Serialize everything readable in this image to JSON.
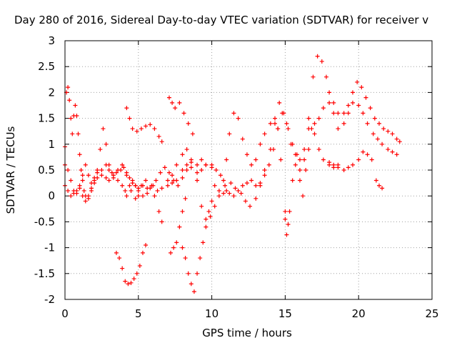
{
  "chart_data": {
    "type": "scatter",
    "title": "Day 280 of 2016, Sidereal Day-to-day VTEC variation (SDTVAR) for receiver v",
    "xlabel": "GPS time / hours",
    "ylabel": "SDTVAR / TECUs",
    "xlim": [
      0,
      25
    ],
    "ylim": [
      -2,
      3
    ],
    "xticks": [
      "0",
      "5",
      "10",
      "15",
      "20",
      "25"
    ],
    "yticks": [
      "-2",
      "-1.5",
      "-1",
      "-0.5",
      "0",
      "0.5",
      "1",
      "1.5",
      "2",
      "2.5",
      "3"
    ],
    "grid": true,
    "marker": "+",
    "color": "#ff0000",
    "series": [
      {
        "points": [
          [
            0.0,
            0.95
          ],
          [
            0.1,
            2.0
          ],
          [
            0.2,
            2.1
          ],
          [
            0.3,
            1.85
          ],
          [
            0.4,
            1.5
          ],
          [
            0.5,
            1.2
          ],
          [
            0.6,
            1.55
          ],
          [
            0.7,
            1.75
          ],
          [
            0.8,
            1.55
          ],
          [
            0.9,
            1.2
          ],
          [
            1.0,
            0.8
          ],
          [
            1.1,
            0.5
          ],
          [
            1.2,
            0.3
          ],
          [
            1.3,
            0.1
          ],
          [
            1.4,
            0.0
          ],
          [
            1.6,
            -0.05
          ],
          [
            1.8,
            0.1
          ],
          [
            2.0,
            0.3
          ],
          [
            2.2,
            0.5
          ],
          [
            2.4,
            0.9
          ],
          [
            2.6,
            1.3
          ],
          [
            2.8,
            1.0
          ],
          [
            3.0,
            0.6
          ],
          [
            3.2,
            0.45
          ],
          [
            3.5,
            0.45
          ],
          [
            3.8,
            0.5
          ],
          [
            4.0,
            0.55
          ],
          [
            4.2,
            0.45
          ],
          [
            4.4,
            0.35
          ],
          [
            4.6,
            0.25
          ],
          [
            4.8,
            0.2
          ],
          [
            5.0,
            0.15
          ],
          [
            5.3,
            0.2
          ],
          [
            5.6,
            0.15
          ],
          [
            6.0,
            0.2
          ],
          [
            6.3,
            0.1
          ],
          [
            6.6,
            0.15
          ],
          [
            7.0,
            0.3
          ],
          [
            7.3,
            0.25
          ],
          [
            7.6,
            0.3
          ],
          [
            8.0,
            0.5
          ],
          [
            8.3,
            0.6
          ],
          [
            8.6,
            0.55
          ],
          [
            9.0,
            0.45
          ],
          [
            9.3,
            0.5
          ],
          [
            9.6,
            0.6
          ],
          [
            10.0,
            0.6
          ],
          [
            10.2,
            0.2
          ],
          [
            10.5,
            0.1
          ],
          [
            10.8,
            0.05
          ],
          [
            11.0,
            0.1
          ],
          [
            11.3,
            0.25
          ],
          [
            11.6,
            0.15
          ],
          [
            12.0,
            0.05
          ],
          [
            12.3,
            -0.1
          ],
          [
            12.6,
            -0.2
          ],
          [
            13.0,
            -0.05
          ],
          [
            13.3,
            0.2
          ],
          [
            13.6,
            0.5
          ],
          [
            14.0,
            0.9
          ],
          [
            14.3,
            1.4
          ],
          [
            14.6,
            1.8
          ],
          [
            14.9,
            1.6
          ],
          [
            15.2,
            1.3
          ],
          [
            15.5,
            1.0
          ],
          [
            15.8,
            0.8
          ],
          [
            16.0,
            0.7
          ],
          [
            16.3,
            0.9
          ],
          [
            16.6,
            1.3
          ],
          [
            17.0,
            1.4
          ],
          [
            17.3,
            1.5
          ],
          [
            17.6,
            1.7
          ],
          [
            18.0,
            1.8
          ],
          [
            18.3,
            1.6
          ],
          [
            18.6,
            1.3
          ],
          [
            19.0,
            1.4
          ],
          [
            19.3,
            1.6
          ],
          [
            19.6,
            1.8
          ],
          [
            20.0,
            1.75
          ],
          [
            20.3,
            1.6
          ],
          [
            20.6,
            1.4
          ],
          [
            21.0,
            1.2
          ],
          [
            21.3,
            1.1
          ],
          [
            21.6,
            1.0
          ],
          [
            22.0,
            0.9
          ],
          [
            22.3,
            0.85
          ],
          [
            22.6,
            0.8
          ]
        ]
      },
      {
        "points": [
          [
            0.0,
            0.2
          ],
          [
            0.2,
            0.1
          ],
          [
            0.4,
            0.0
          ],
          [
            0.6,
            0.05
          ],
          [
            0.8,
            0.1
          ],
          [
            1.0,
            0.15
          ],
          [
            1.2,
            0.0
          ],
          [
            1.4,
            -0.1
          ],
          [
            1.6,
            0.0
          ],
          [
            1.8,
            0.15
          ],
          [
            2.0,
            0.25
          ],
          [
            2.2,
            0.35
          ],
          [
            2.5,
            0.4
          ],
          [
            2.8,
            0.35
          ],
          [
            3.0,
            0.3
          ],
          [
            3.3,
            0.35
          ],
          [
            3.6,
            0.5
          ],
          [
            3.9,
            0.6
          ],
          [
            4.2,
            0.4
          ],
          [
            4.5,
            0.1
          ],
          [
            4.8,
            -0.05
          ],
          [
            5.0,
            0.0
          ],
          [
            5.2,
            0.2
          ],
          [
            5.5,
            0.3
          ],
          [
            5.8,
            0.15
          ],
          [
            6.1,
            0.0
          ],
          [
            6.4,
            -0.3
          ],
          [
            6.6,
            -0.5
          ],
          [
            7.0,
            0.2
          ],
          [
            7.3,
            0.4
          ],
          [
            7.6,
            0.6
          ],
          [
            8.0,
            0.8
          ],
          [
            8.3,
            0.9
          ],
          [
            8.6,
            0.7
          ],
          [
            9.0,
            0.3
          ],
          [
            9.3,
            -0.2
          ],
          [
            9.6,
            -0.45
          ],
          [
            9.9,
            -0.4
          ],
          [
            10.2,
            -0.2
          ],
          [
            10.5,
            0.0
          ],
          [
            10.8,
            0.3
          ],
          [
            11.0,
            0.7
          ],
          [
            11.2,
            1.2
          ],
          [
            11.5,
            1.6
          ],
          [
            11.8,
            1.5
          ],
          [
            12.1,
            1.1
          ],
          [
            12.4,
            0.8
          ],
          [
            12.7,
            0.6
          ],
          [
            13.0,
            0.7
          ],
          [
            13.3,
            1.0
          ],
          [
            13.6,
            1.2
          ],
          [
            14.0,
            1.4
          ],
          [
            14.3,
            1.5
          ],
          [
            14.5,
            1.3
          ],
          [
            14.7,
            0.7
          ],
          [
            15.0,
            -0.3
          ],
          [
            15.1,
            -0.75
          ],
          [
            15.3,
            -0.3
          ],
          [
            15.5,
            0.3
          ],
          [
            15.7,
            0.8
          ],
          [
            16.0,
            0.3
          ],
          [
            16.2,
            0.0
          ],
          [
            16.4,
            0.5
          ],
          [
            16.6,
            0.9
          ],
          [
            16.8,
            1.3
          ],
          [
            17.0,
            1.2
          ],
          [
            17.3,
            0.9
          ],
          [
            17.6,
            0.7
          ],
          [
            18.0,
            0.6
          ],
          [
            18.3,
            0.55
          ],
          [
            18.6,
            0.6
          ],
          [
            19.0,
            0.5
          ],
          [
            19.3,
            0.55
          ],
          [
            19.6,
            0.6
          ],
          [
            20.0,
            0.7
          ],
          [
            20.3,
            0.85
          ],
          [
            20.6,
            0.8
          ],
          [
            20.9,
            0.7
          ]
        ]
      },
      {
        "points": [
          [
            0.0,
            0.6
          ],
          [
            0.2,
            0.5
          ],
          [
            0.4,
            0.3
          ],
          [
            0.6,
            0.1
          ],
          [
            0.8,
            0.05
          ],
          [
            1.0,
            0.2
          ],
          [
            1.2,
            0.4
          ],
          [
            1.4,
            0.6
          ],
          [
            1.6,
            0.4
          ],
          [
            1.8,
            0.25
          ],
          [
            2.0,
            0.35
          ],
          [
            2.2,
            0.45
          ],
          [
            2.5,
            0.5
          ],
          [
            2.8,
            0.6
          ],
          [
            3.0,
            0.5
          ],
          [
            3.3,
            0.4
          ],
          [
            3.6,
            0.3
          ],
          [
            3.9,
            0.2
          ],
          [
            4.1,
            0.1
          ],
          [
            4.2,
            0.0
          ],
          [
            4.4,
            0.2
          ],
          [
            4.6,
            0.3
          ],
          [
            4.8,
            0.2
          ],
          [
            5.0,
            0.1
          ],
          [
            5.3,
            0.0
          ],
          [
            5.6,
            0.05
          ],
          [
            5.9,
            0.2
          ],
          [
            6.2,
            0.3
          ],
          [
            6.5,
            0.45
          ],
          [
            6.8,
            0.55
          ],
          [
            7.1,
            0.45
          ],
          [
            7.4,
            0.3
          ],
          [
            7.7,
            0.2
          ],
          [
            8.0,
            0.35
          ],
          [
            8.3,
            0.5
          ],
          [
            8.6,
            0.65
          ],
          [
            9.0,
            0.6
          ],
          [
            9.3,
            0.7
          ],
          [
            9.6,
            0.6
          ],
          [
            10.0,
            0.55
          ],
          [
            10.3,
            0.5
          ],
          [
            10.6,
            0.4
          ],
          [
            10.9,
            0.2
          ],
          [
            11.2,
            0.05
          ],
          [
            11.5,
            0.0
          ],
          [
            11.8,
            0.1
          ],
          [
            12.1,
            0.2
          ],
          [
            12.4,
            0.25
          ],
          [
            12.7,
            0.3
          ],
          [
            13.0,
            0.2
          ],
          [
            13.3,
            0.25
          ],
          [
            13.6,
            0.4
          ],
          [
            13.9,
            0.6
          ],
          [
            14.2,
            0.9
          ],
          [
            14.5,
            1.3
          ],
          [
            14.8,
            1.6
          ],
          [
            15.1,
            1.4
          ],
          [
            15.4,
            1.0
          ],
          [
            15.7,
            0.6
          ],
          [
            16.0,
            0.5
          ],
          [
            16.3,
            0.7
          ],
          [
            16.6,
            1.5
          ],
          [
            16.9,
            2.3
          ],
          [
            17.2,
            2.7
          ],
          [
            17.5,
            2.6
          ],
          [
            17.8,
            2.3
          ],
          [
            18.0,
            2.0
          ],
          [
            18.3,
            1.8
          ],
          [
            18.6,
            1.6
          ],
          [
            19.0,
            1.6
          ],
          [
            19.3,
            1.75
          ],
          [
            19.6,
            2.0
          ],
          [
            19.9,
            2.2
          ],
          [
            20.2,
            2.1
          ],
          [
            20.5,
            1.9
          ],
          [
            20.8,
            1.7
          ],
          [
            21.1,
            1.5
          ],
          [
            21.4,
            1.4
          ],
          [
            21.7,
            1.3
          ],
          [
            22.0,
            1.25
          ],
          [
            22.3,
            1.2
          ],
          [
            22.6,
            1.1
          ],
          [
            22.8,
            1.05
          ]
        ]
      },
      {
        "points": [
          [
            3.5,
            -1.1
          ],
          [
            3.7,
            -1.2
          ],
          [
            3.9,
            -1.4
          ],
          [
            4.1,
            -1.65
          ],
          [
            4.3,
            -1.7
          ],
          [
            4.5,
            -1.68
          ],
          [
            4.7,
            -1.6
          ],
          [
            4.9,
            -1.5
          ],
          [
            5.1,
            -1.35
          ],
          [
            5.3,
            -1.1
          ],
          [
            5.5,
            -0.95
          ],
          [
            4.2,
            1.7
          ],
          [
            4.4,
            1.5
          ],
          [
            4.6,
            1.3
          ],
          [
            4.9,
            1.25
          ],
          [
            5.2,
            1.3
          ],
          [
            5.5,
            1.35
          ],
          [
            5.8,
            1.38
          ],
          [
            6.1,
            1.3
          ],
          [
            6.4,
            1.15
          ],
          [
            6.6,
            1.05
          ],
          [
            7.1,
            1.9
          ],
          [
            7.3,
            1.8
          ],
          [
            7.5,
            1.7
          ],
          [
            7.8,
            1.8
          ],
          [
            8.1,
            1.6
          ],
          [
            8.4,
            1.4
          ],
          [
            8.7,
            1.2
          ],
          [
            7.2,
            -1.1
          ],
          [
            7.4,
            -1.0
          ],
          [
            7.6,
            -0.9
          ],
          [
            7.8,
            -0.6
          ],
          [
            8.0,
            -0.3
          ],
          [
            8.2,
            -0.05
          ],
          [
            8.0,
            -1.0
          ],
          [
            8.2,
            -1.2
          ],
          [
            8.4,
            -1.5
          ],
          [
            8.6,
            -1.7
          ],
          [
            8.8,
            -1.85
          ],
          [
            9.0,
            -1.5
          ],
          [
            9.2,
            -1.2
          ],
          [
            9.4,
            -0.9
          ],
          [
            9.6,
            -0.6
          ],
          [
            9.8,
            -0.3
          ],
          [
            10.0,
            -0.1
          ],
          [
            15.0,
            -0.45
          ],
          [
            15.2,
            -0.55
          ],
          [
            18.0,
            0.65
          ],
          [
            18.3,
            0.6
          ],
          [
            18.6,
            0.55
          ],
          [
            21.2,
            0.3
          ],
          [
            21.4,
            0.2
          ],
          [
            21.6,
            0.15
          ]
        ]
      }
    ]
  }
}
